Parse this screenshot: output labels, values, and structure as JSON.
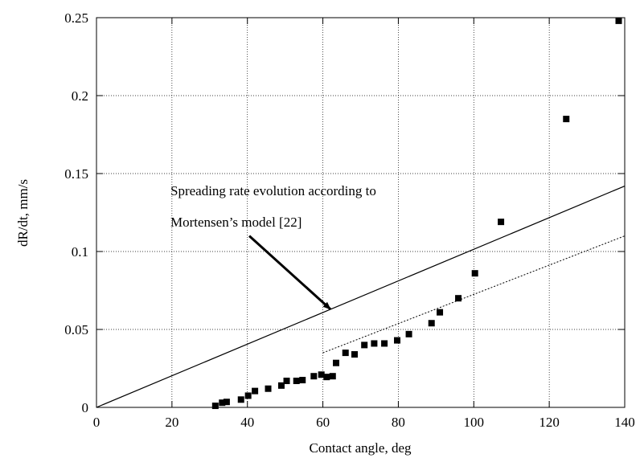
{
  "chart_data": {
    "type": "scatter",
    "title": "",
    "xlabel": "Contact angle, deg",
    "ylabel": "dR/dt, mm/s",
    "xlim": [
      0,
      140
    ],
    "ylim": [
      0,
      0.25
    ],
    "grid": true,
    "x_ticks": [
      "0",
      "20",
      "40",
      "60",
      "80",
      "100",
      "120",
      "140"
    ],
    "y_ticks": [
      "0",
      "0.05",
      "0.1",
      "0.15",
      "0.2",
      "0.25"
    ],
    "series": [
      {
        "marker": "square",
        "color": "#000000",
        "points": [
          [
            31.5,
            0.001
          ],
          [
            33.3,
            0.003
          ],
          [
            34.5,
            0.0035
          ],
          [
            38.3,
            0.005
          ],
          [
            40.2,
            0.0075
          ],
          [
            42.0,
            0.0105
          ],
          [
            45.5,
            0.012
          ],
          [
            49.0,
            0.014
          ],
          [
            50.4,
            0.017
          ],
          [
            53.0,
            0.017
          ],
          [
            54.6,
            0.0175
          ],
          [
            57.6,
            0.02
          ],
          [
            59.6,
            0.021
          ],
          [
            61.0,
            0.0195
          ],
          [
            62.6,
            0.02
          ],
          [
            63.5,
            0.0285
          ],
          [
            66.0,
            0.035
          ],
          [
            68.4,
            0.034
          ],
          [
            71.0,
            0.04
          ],
          [
            73.6,
            0.041
          ],
          [
            76.3,
            0.041
          ],
          [
            79.7,
            0.043
          ],
          [
            82.8,
            0.047
          ],
          [
            88.8,
            0.054
          ],
          [
            91.0,
            0.061
          ],
          [
            95.9,
            0.07
          ],
          [
            100.3,
            0.086
          ],
          [
            107.2,
            0.119
          ],
          [
            124.5,
            0.185
          ],
          [
            138.4,
            0.248
          ]
        ]
      },
      {
        "style": "solid",
        "color": "#000000",
        "line": [
          [
            0,
            0
          ],
          [
            140,
            0.142
          ]
        ]
      },
      {
        "style": "dotted",
        "color": "#000000",
        "line": [
          [
            60,
            0.035
          ],
          [
            140,
            0.11
          ]
        ]
      }
    ],
    "annotations": [
      {
        "lines": [
          "Spreading rate evolution according to",
          "Mortensen’s model [22]"
        ],
        "arrow_from": [
          40.5,
          0.11
        ],
        "arrow_to": [
          62.0,
          0.063
        ]
      }
    ]
  }
}
